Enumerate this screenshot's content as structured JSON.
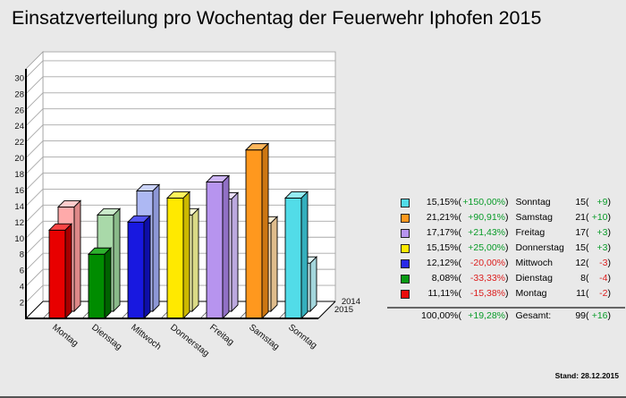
{
  "title": "Einsatzverteilung pro Wochentag der Feuerwehr Iphofen 2015",
  "footer": {
    "stand_label": "Stand: 28.12.2015"
  },
  "chart_data": {
    "type": "bar",
    "title": "Einsatzverteilung pro Wochentag der Feuerwehr Iphofen 2015",
    "categories": [
      "Montag",
      "Dienstag",
      "Mittwoch",
      "Donnerstag",
      "Freitag",
      "Samstag",
      "Sonntag"
    ],
    "series": [
      {
        "name": "2015",
        "values": [
          11,
          8,
          12,
          15,
          17,
          21,
          15
        ]
      },
      {
        "name": "2014",
        "values": [
          13,
          12,
          15,
          12,
          14,
          11,
          6
        ]
      }
    ],
    "ylim": [
      0,
      31
    ],
    "ytick_min": 2,
    "ytick_max": 30,
    "ytick_step": 2,
    "grid": true,
    "legend_position": "right",
    "depth_labels_back_to_front": [
      "2014",
      "2015"
    ],
    "colors_2015": [
      {
        "front": "#E80000",
        "top": "#FB4545",
        "side": "#A60000"
      },
      {
        "front": "#008C00",
        "top": "#2EB22E",
        "side": "#006200"
      },
      {
        "front": "#1818E0",
        "top": "#5252F2",
        "side": "#0E0EA8"
      },
      {
        "front": "#FFE900",
        "top": "#FFF45C",
        "side": "#CCB800"
      },
      {
        "front": "#B794EF",
        "top": "#CEB6F7",
        "side": "#9170C5"
      },
      {
        "front": "#FF981E",
        "top": "#FFB65C",
        "side": "#CC7612"
      },
      {
        "front": "#52DCE8",
        "top": "#94EBF3",
        "side": "#35AFBD"
      }
    ],
    "colors_2014": [
      {
        "front": "#FFAAAA",
        "top": "#FFCCCC",
        "side": "#DD8888"
      },
      {
        "front": "#A9D9A9",
        "top": "#CBEACB",
        "side": "#8ABA8A"
      },
      {
        "front": "#ADB8F3",
        "top": "#CBD3F9",
        "side": "#8D97D6"
      },
      {
        "front": "#FFFFB2",
        "top": "#FFFFD6",
        "side": "#DADA86"
      },
      {
        "front": "#DDCDF7",
        "top": "#EBE0FB",
        "side": "#BCA9DF"
      },
      {
        "front": "#FFDFB2",
        "top": "#FFEDD3",
        "side": "#DFBC8C"
      },
      {
        "front": "#CDF5F8",
        "top": "#E2FBFC",
        "side": "#A4D6DC"
      }
    ]
  },
  "legend": {
    "rows": [
      {
        "color": "#52DCE8",
        "pct": "15,15%",
        "change": "+150,00%",
        "change_positive": true,
        "label": "Sonntag",
        "count": "15",
        "delta": "+9",
        "delta_positive": true
      },
      {
        "color": "#FF981E",
        "pct": "21,21%",
        "change": "+90,91%",
        "change_positive": true,
        "label": "Samstag",
        "count": "21",
        "delta": "+10",
        "delta_positive": true
      },
      {
        "color": "#B794EF",
        "pct": "17,17%",
        "change": "+21,43%",
        "change_positive": true,
        "label": "Freitag",
        "count": "17",
        "delta": "+3",
        "delta_positive": true
      },
      {
        "color": "#FFE900",
        "pct": "15,15%",
        "change": "+25,00%",
        "change_positive": true,
        "label": "Donnerstag",
        "count": "15",
        "delta": "+3",
        "delta_positive": true
      },
      {
        "color": "#2A2AE8",
        "pct": "12,12%",
        "change": "-20,00%",
        "change_positive": false,
        "label": "Mittwoch",
        "count": "12",
        "delta": "-3",
        "delta_positive": false
      },
      {
        "color": "#0A9A14",
        "pct": "8,08%",
        "change": "-33,33%",
        "change_positive": false,
        "label": "Dienstag",
        "count": "8",
        "delta": "-4",
        "delta_positive": false
      },
      {
        "color": "#EA0B0B",
        "pct": "11,11%",
        "change": "-15,38%",
        "change_positive": false,
        "label": "Montag",
        "count": "11",
        "delta": "-2",
        "delta_positive": false
      }
    ],
    "total": {
      "pct": "100,00%",
      "change": "+19,28%",
      "change_positive": true,
      "label": "Gesamt:",
      "count": "99",
      "delta": "+16",
      "delta_positive": true
    }
  }
}
